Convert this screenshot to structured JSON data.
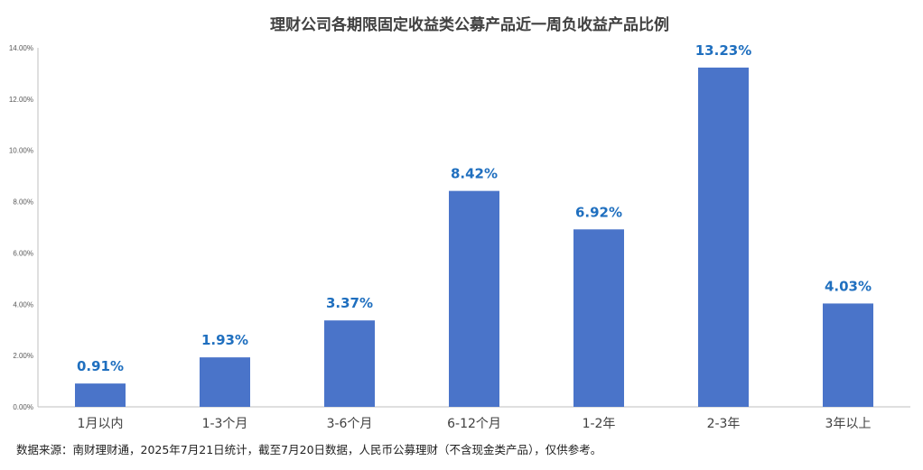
{
  "chart_data": {
    "type": "bar",
    "title": "理财公司各期限固定收益类公募产品近一周负收益产品比例",
    "categories": [
      "1月以内",
      "1-3个月",
      "3-6个月",
      "6-12个月",
      "1-2年",
      "2-3年",
      "3年以上"
    ],
    "values": [
      0.91,
      1.93,
      3.37,
      8.42,
      6.92,
      13.23,
      4.03
    ],
    "data_labels": [
      "0.91%",
      "1.93%",
      "3.37%",
      "8.42%",
      "6.92%",
      "13.23%",
      "4.03%"
    ],
    "ylim": [
      0,
      14
    ],
    "yticks": [
      0,
      2,
      4,
      6,
      8,
      10,
      12,
      14
    ],
    "ytick_labels": [
      "0.00%",
      "2.00%",
      "4.00%",
      "6.00%",
      "8.00%",
      "10.00%",
      "12.00%",
      "14.00%"
    ],
    "xlabel": "",
    "ylabel": "",
    "grid": false,
    "legend": "none",
    "bar_color": "#4a74c9",
    "label_color": "#1f6fbf"
  },
  "footnote": "数据来源：南财理财通，2025年7月21日统计，截至7月20日数据，人民币公募理财（不含现金类产品），仅供参考。"
}
